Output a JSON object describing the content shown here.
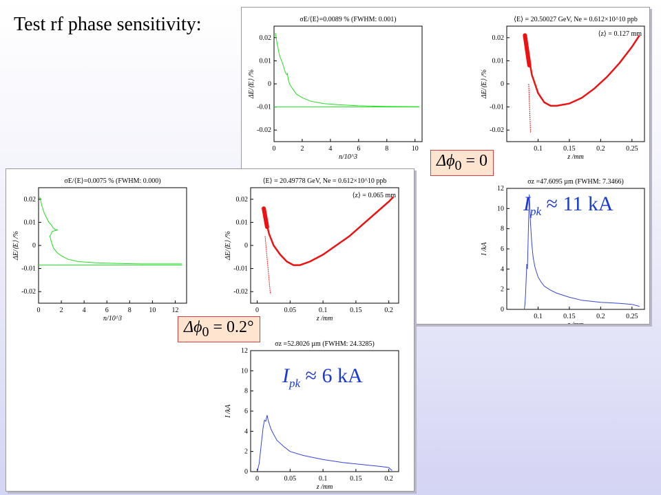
{
  "title": "Test rf phase sensitivity:",
  "callouts": {
    "top": {
      "symbol": "Δϕ",
      "sub": "0",
      "text": " = 0"
    },
    "bottom": {
      "symbol": "Δϕ",
      "sub": "0",
      "text": " = 0.2°"
    }
  },
  "ipk": {
    "top": {
      "symbol": "I",
      "sub": "pk",
      "text": " ≈ 11 kA"
    },
    "bottom": {
      "symbol": "I",
      "sub": "pk",
      "text": " ≈ 6 kA"
    }
  },
  "colors": {
    "hist": "#22dd22",
    "phase": "#ee1111",
    "current": "#3344dd"
  },
  "chart_data": [
    {
      "id": "top_hist",
      "type": "line",
      "title": "σE/⟨E⟩=0.0089 % (FWHM:  0.001)",
      "xlabel": "n/10^3",
      "ylabel": "ΔE/⟨E⟩ /%",
      "xlim": [
        0,
        10.5
      ],
      "ylim": [
        -0.025,
        0.025
      ],
      "xticks": [
        0,
        2,
        4,
        6,
        8,
        10
      ],
      "yticks": [
        -0.02,
        -0.01,
        0,
        0.01,
        0.02
      ],
      "ytick_labels": [
        "-0.02",
        "-0.01",
        "0",
        "0.01",
        "0.02"
      ],
      "series": [
        {
          "x": [
            0.1,
            0.15,
            0.2,
            0.3,
            0.4,
            0.6,
            0.7,
            0.8,
            0.9,
            0.95,
            1.0,
            1.1,
            1.3,
            1.6,
            2.0,
            2.6,
            3.5,
            4.5,
            6,
            8,
            10.3
          ],
          "y": [
            0.022,
            0.02,
            0.018,
            0.015,
            0.012,
            0.009,
            0.007,
            0.005,
            0.004,
            0.0045,
            0.002,
            0.0,
            -0.002,
            -0.0045,
            -0.006,
            -0.0075,
            -0.0085,
            -0.009,
            -0.0095,
            -0.0098,
            -0.0099
          ]
        },
        {
          "x": [
            0,
            10.3
          ],
          "y": [
            -0.01,
            -0.01
          ]
        }
      ]
    },
    {
      "id": "top_phase",
      "type": "scatter",
      "title": "⟨E⟩ =  20.50027 GeV, Ne =  0.612×10^10 ppb",
      "annotation": "⟨z⟩ = 0.127 mm",
      "xlabel": "z /mm",
      "ylabel": "ΔE/⟨E⟩ /%",
      "xlim": [
        0.05,
        0.27
      ],
      "ylim": [
        -0.025,
        0.025
      ],
      "xticks": [
        0.1,
        0.15,
        0.2,
        0.25
      ],
      "yticks": [
        -0.02,
        -0.01,
        0,
        0.01,
        0.02
      ],
      "ytick_labels": [
        "-0.02",
        "-0.01",
        "0",
        "0.01",
        "0.02"
      ],
      "curve": {
        "x": [
          0.085,
          0.09,
          0.1,
          0.11,
          0.12,
          0.13,
          0.15,
          0.17,
          0.19,
          0.21,
          0.23,
          0.25,
          0.262
        ],
        "y": [
          0.012,
          0.004,
          -0.004,
          -0.008,
          -0.0095,
          -0.0095,
          -0.0085,
          -0.006,
          -0.002,
          0.003,
          0.009,
          0.016,
          0.021
        ]
      },
      "head": {
        "x": [
          0.079,
          0.086
        ],
        "y": [
          0.021,
          0.008
        ]
      },
      "tail": {
        "x": [
          0.085,
          0.088
        ],
        "y": [
          0.0,
          -0.021
        ]
      }
    },
    {
      "id": "top_current",
      "type": "line",
      "title": "σz =47.6095 µm (FWHM:  7.3466)",
      "xlabel": "z /mm",
      "ylabel": "I /kA",
      "xlim": [
        0.05,
        0.27
      ],
      "ylim": [
        0,
        12
      ],
      "xticks": [
        0.1,
        0.15,
        0.2,
        0.25
      ],
      "yticks": [
        0,
        2,
        4,
        6,
        8,
        10,
        12
      ],
      "ytick_labels": [
        "0",
        "2",
        "4",
        "6",
        "8",
        "10",
        "12"
      ],
      "series": [
        {
          "x": [
            0.078,
            0.079,
            0.08,
            0.081,
            0.082,
            0.083,
            0.084,
            0.085,
            0.086,
            0.087,
            0.088,
            0.09,
            0.092,
            0.095,
            0.1,
            0.105,
            0.11,
            0.12,
            0.13,
            0.15,
            0.17,
            0.2,
            0.23,
            0.25,
            0.262
          ],
          "y": [
            0,
            0.5,
            1.5,
            3,
            4.5,
            4,
            6.5,
            9,
            11.4,
            10,
            8.5,
            6.5,
            5.2,
            4.2,
            3.2,
            2.7,
            2.3,
            1.9,
            1.6,
            1.2,
            0.9,
            0.7,
            0.6,
            0.5,
            0.3
          ]
        }
      ]
    },
    {
      "id": "bottom_hist",
      "type": "line",
      "title": "σE/⟨E⟩=0.0075 % (FWHM:  0.000)",
      "xlabel": "n/10^3",
      "ylabel": "ΔE/⟨E⟩ /%",
      "xlim": [
        0,
        13
      ],
      "ylim": [
        -0.025,
        0.025
      ],
      "xticks": [
        0,
        2,
        4,
        6,
        8,
        10,
        12
      ],
      "yticks": [
        -0.02,
        -0.01,
        0,
        0.01,
        0.02
      ],
      "ytick_labels": [
        "-0.02",
        "-0.01",
        "0",
        "0.01",
        "0.02"
      ],
      "series": [
        {
          "x": [
            0.1,
            0.2,
            0.3,
            0.5,
            0.7,
            0.9,
            1.1,
            1.3,
            1.5,
            1.7,
            1.2,
            1.0,
            1.1,
            1.3,
            1.6,
            2.0,
            2.6,
            3.5,
            5,
            7,
            9,
            11,
            12.6
          ],
          "y": [
            0.021,
            0.019,
            0.017,
            0.014,
            0.012,
            0.01,
            0.009,
            0.0075,
            0.0068,
            0.0068,
            0.006,
            0.004,
            0.002,
            -0.001,
            -0.003,
            -0.0045,
            -0.006,
            -0.007,
            -0.0075,
            -0.0078,
            -0.008,
            -0.008,
            -0.008
          ]
        },
        {
          "x": [
            0,
            12.6
          ],
          "y": [
            -0.0085,
            -0.0085
          ]
        }
      ]
    },
    {
      "id": "bottom_phase",
      "type": "scatter",
      "title": "⟨E⟩ =  20.49778 GeV, Ne =  0.612×10^10 ppb",
      "annotation": "⟨z⟩ = 0.065 mm",
      "xlabel": "z /mm",
      "ylabel": "ΔE/⟨E⟩ /%",
      "xlim": [
        -0.01,
        0.215
      ],
      "ylim": [
        -0.025,
        0.025
      ],
      "xticks": [
        0,
        0.05,
        0.1,
        0.15,
        0.2
      ],
      "yticks": [
        -0.02,
        -0.01,
        0,
        0.01,
        0.02
      ],
      "ytick_labels": [
        "-0.02",
        "-0.01",
        "0",
        "0.01",
        "0.02"
      ],
      "curve": {
        "x": [
          0.013,
          0.018,
          0.025,
          0.035,
          0.045,
          0.055,
          0.065,
          0.08,
          0.1,
          0.12,
          0.14,
          0.16,
          0.18,
          0.2,
          0.207
        ],
        "y": [
          0.011,
          0.005,
          0.0,
          -0.004,
          -0.007,
          -0.0085,
          -0.0085,
          -0.007,
          -0.004,
          0.0,
          0.004,
          0.009,
          0.014,
          0.019,
          0.021
        ]
      },
      "head": {
        "x": [
          0.01,
          0.015
        ],
        "y": [
          0.016,
          0.008
        ]
      },
      "tail": {
        "x": [
          0.012,
          0.02
        ],
        "y": [
          0.004,
          -0.021
        ]
      }
    },
    {
      "id": "bottom_current",
      "type": "line",
      "title": "σz =52.8026 µm (FWHM: 24.3285)",
      "xlabel": "z /mm",
      "ylabel": "I /kA",
      "xlim": [
        -0.01,
        0.215
      ],
      "ylim": [
        0,
        12
      ],
      "xticks": [
        0,
        0.05,
        0.1,
        0.15,
        0.2
      ],
      "yticks": [
        0,
        2,
        4,
        6,
        8,
        10,
        12
      ],
      "ytick_labels": [
        "0",
        "2",
        "4",
        "6",
        "8",
        "10",
        "12"
      ],
      "series": [
        {
          "x": [
            0.0,
            0.003,
            0.005,
            0.007,
            0.009,
            0.011,
            0.013,
            0.015,
            0.017,
            0.019,
            0.021,
            0.025,
            0.03,
            0.04,
            0.05,
            0.07,
            0.1,
            0.13,
            0.16,
            0.19,
            0.2,
            0.205
          ],
          "y": [
            0,
            0.8,
            2,
            3.2,
            4.4,
            5.1,
            5.0,
            5.6,
            5.0,
            4.6,
            4.2,
            3.7,
            3.1,
            2.5,
            2.0,
            1.6,
            1.2,
            0.9,
            0.7,
            0.5,
            0.4,
            0.1
          ]
        }
      ]
    }
  ]
}
